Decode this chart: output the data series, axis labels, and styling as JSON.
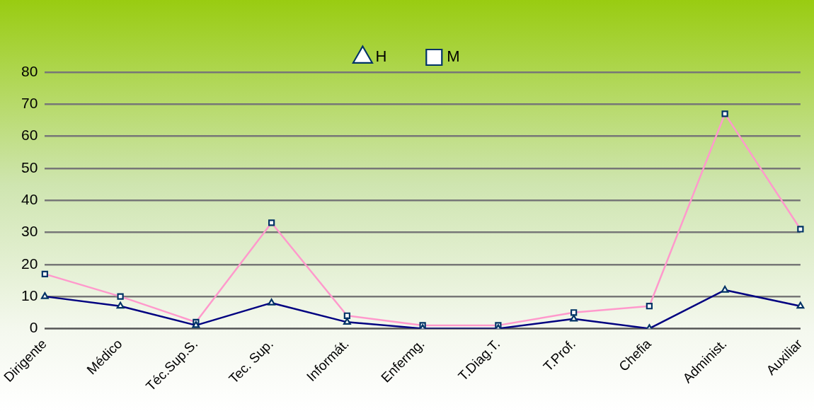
{
  "chart_data": {
    "type": "line",
    "categories": [
      "Dirigente",
      "Médico",
      "Téc.Sup.S.",
      "Tec. Sup.",
      "Informát.",
      "Enfermg.",
      "T.Diag.T.",
      "T.Prof.",
      "Chefia",
      "Administ.",
      "Auxiliar"
    ],
    "series": [
      {
        "name": "H",
        "color": "#000080",
        "marker": "triangle",
        "values": [
          10,
          7,
          1,
          8,
          2,
          0,
          0,
          3,
          0,
          12,
          7
        ]
      },
      {
        "name": "M",
        "color": "#ff99cc",
        "marker": "square",
        "values": [
          17,
          10,
          2,
          33,
          4,
          1,
          1,
          5,
          7,
          67,
          31
        ]
      }
    ],
    "ylim": [
      0,
      80
    ],
    "yticks": [
      0,
      10,
      20,
      30,
      40,
      50,
      60,
      70,
      80
    ],
    "grid": "y",
    "legend": "top",
    "line_style": "solid"
  }
}
